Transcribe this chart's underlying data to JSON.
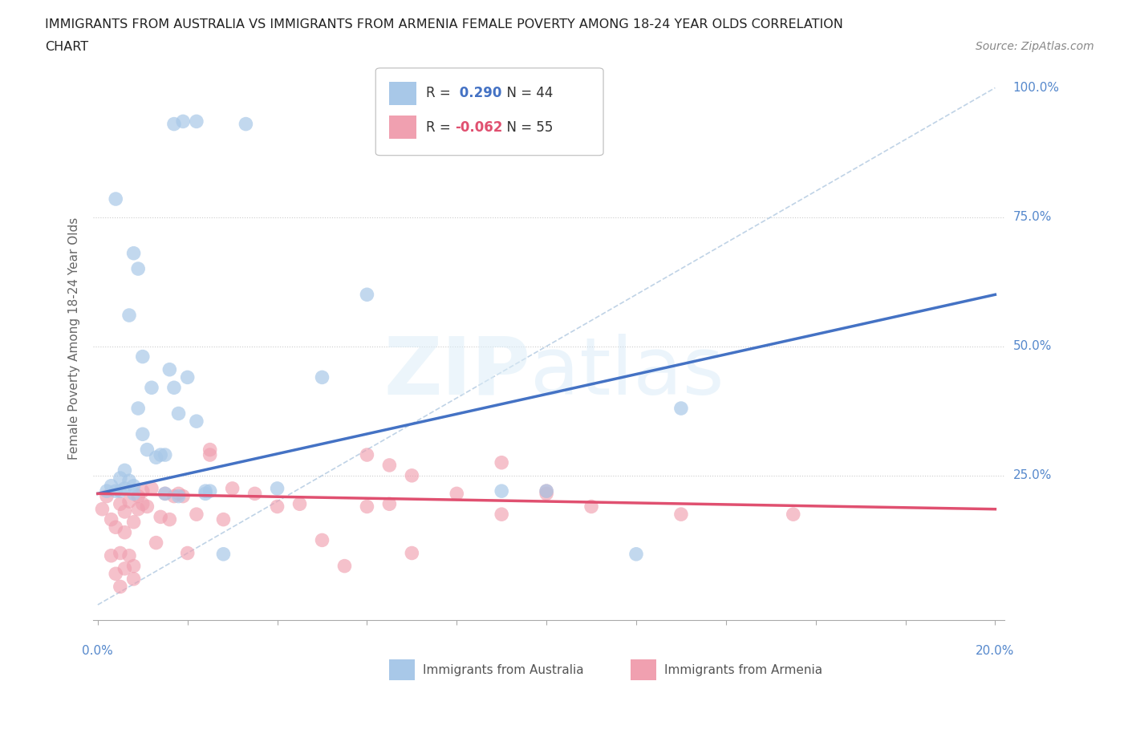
{
  "title_line1": "IMMIGRANTS FROM AUSTRALIA VS IMMIGRANTS FROM ARMENIA FEMALE POVERTY AMONG 18-24 YEAR OLDS CORRELATION",
  "title_line2": "CHART",
  "source": "Source: ZipAtlas.com",
  "ylabel": "Female Poverty Among 18-24 Year Olds",
  "xlim": [
    0.0,
    0.2
  ],
  "ylim": [
    0.0,
    1.05
  ],
  "R_australia": 0.29,
  "N_australia": 44,
  "R_armenia": -0.062,
  "N_armenia": 55,
  "color_australia": "#a8c8e8",
  "color_armenia": "#f0a0b0",
  "line_color_australia": "#4472c4",
  "line_color_armenia": "#e05070",
  "diag_color": "#b0c8e0",
  "grid_color": "#cccccc",
  "right_label_color": "#5588cc",
  "bottom_label_color": "#5588cc",
  "aus_line_x0": 0.0,
  "aus_line_y0": 0.215,
  "aus_line_x1": 0.2,
  "aus_line_y1": 0.6,
  "arm_line_x0": 0.0,
  "arm_line_y0": 0.215,
  "arm_line_x1": 0.2,
  "arm_line_y1": 0.185,
  "australia_x": [
    0.017,
    0.019,
    0.022,
    0.033,
    0.004,
    0.008,
    0.009,
    0.007,
    0.01,
    0.003,
    0.004,
    0.005,
    0.005,
    0.006,
    0.006,
    0.007,
    0.008,
    0.008,
    0.009,
    0.01,
    0.011,
    0.012,
    0.013,
    0.014,
    0.015,
    0.016,
    0.017,
    0.018,
    0.02,
    0.022,
    0.024,
    0.025,
    0.04,
    0.05,
    0.06,
    0.09,
    0.1,
    0.12,
    0.13,
    0.018,
    0.024,
    0.028,
    0.015,
    0.002
  ],
  "australia_y": [
    0.93,
    0.935,
    0.935,
    0.93,
    0.785,
    0.68,
    0.65,
    0.56,
    0.48,
    0.23,
    0.22,
    0.245,
    0.22,
    0.26,
    0.225,
    0.24,
    0.23,
    0.215,
    0.38,
    0.33,
    0.3,
    0.42,
    0.285,
    0.29,
    0.29,
    0.455,
    0.42,
    0.37,
    0.44,
    0.355,
    0.215,
    0.22,
    0.225,
    0.44,
    0.6,
    0.22,
    0.22,
    0.098,
    0.38,
    0.21,
    0.22,
    0.098,
    0.215,
    0.22
  ],
  "armenia_x": [
    0.001,
    0.002,
    0.003,
    0.003,
    0.004,
    0.004,
    0.005,
    0.005,
    0.006,
    0.006,
    0.007,
    0.007,
    0.008,
    0.008,
    0.009,
    0.009,
    0.01,
    0.01,
    0.011,
    0.012,
    0.013,
    0.014,
    0.015,
    0.016,
    0.017,
    0.018,
    0.019,
    0.02,
    0.022,
    0.025,
    0.025,
    0.028,
    0.03,
    0.035,
    0.04,
    0.045,
    0.05,
    0.055,
    0.06,
    0.065,
    0.07,
    0.08,
    0.09,
    0.1,
    0.11,
    0.13,
    0.155,
    0.06,
    0.065,
    0.07,
    0.09,
    0.1,
    0.005,
    0.006,
    0.008
  ],
  "armenia_y": [
    0.185,
    0.21,
    0.165,
    0.095,
    0.15,
    0.06,
    0.035,
    0.195,
    0.14,
    0.18,
    0.095,
    0.2,
    0.16,
    0.075,
    0.185,
    0.21,
    0.22,
    0.195,
    0.19,
    0.225,
    0.12,
    0.17,
    0.215,
    0.165,
    0.21,
    0.215,
    0.21,
    0.1,
    0.175,
    0.3,
    0.29,
    0.165,
    0.225,
    0.215,
    0.19,
    0.195,
    0.125,
    0.075,
    0.19,
    0.27,
    0.1,
    0.215,
    0.275,
    0.215,
    0.19,
    0.175,
    0.175,
    0.29,
    0.195,
    0.25,
    0.175,
    0.22,
    0.1,
    0.07,
    0.05
  ]
}
